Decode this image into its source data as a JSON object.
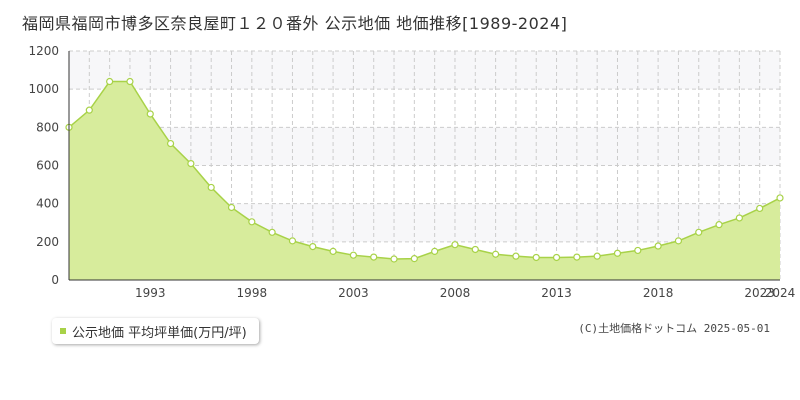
{
  "title": "福岡県福岡市博多区奈良屋町１２０番外 公示地価 地価推移[1989-2024]",
  "legend": {
    "label": "公示地価 平均坪単価(万円/坪)"
  },
  "copyright": "(C)土地価格ドットコム 2025-05-01",
  "colors": {
    "fill": "#d7ec9c",
    "line": "#a8d248",
    "marker_fill": "#ffffff",
    "grid": "#cccccc",
    "band": "#f7f7f9"
  },
  "chart_data": {
    "type": "area",
    "title": "福岡県福岡市博多区奈良屋町１２０番外 公示地価 地価推移[1989-2024]",
    "xlabel": "",
    "ylabel": "",
    "xlim": [
      1989,
      2024
    ],
    "ylim": [
      0,
      1200
    ],
    "y_ticks": [
      0,
      200,
      400,
      600,
      800,
      1000,
      1200
    ],
    "x_tick_labels": [
      "1993",
      "1998",
      "2003",
      "2008",
      "2013",
      "2018",
      "2023",
      "2024"
    ],
    "x_tick_values": [
      1993,
      1998,
      2003,
      2008,
      2013,
      2018,
      2023,
      2024
    ],
    "grid": true,
    "legend_position": "bottom-left",
    "series": [
      {
        "name": "公示地価 平均坪単価(万円/坪)",
        "x": [
          1989,
          1990,
          1991,
          1992,
          1993,
          1994,
          1995,
          1996,
          1997,
          1998,
          1999,
          2000,
          2001,
          2002,
          2003,
          2004,
          2005,
          2006,
          2007,
          2008,
          2009,
          2010,
          2011,
          2012,
          2013,
          2014,
          2015,
          2016,
          2017,
          2018,
          2019,
          2020,
          2021,
          2022,
          2023,
          2024
        ],
        "values": [
          800,
          890,
          1040,
          1040,
          870,
          715,
          610,
          485,
          380,
          305,
          250,
          205,
          175,
          150,
          130,
          120,
          110,
          112,
          150,
          185,
          160,
          135,
          125,
          118,
          118,
          120,
          125,
          140,
          155,
          178,
          205,
          250,
          290,
          325,
          375,
          430
        ]
      }
    ]
  }
}
